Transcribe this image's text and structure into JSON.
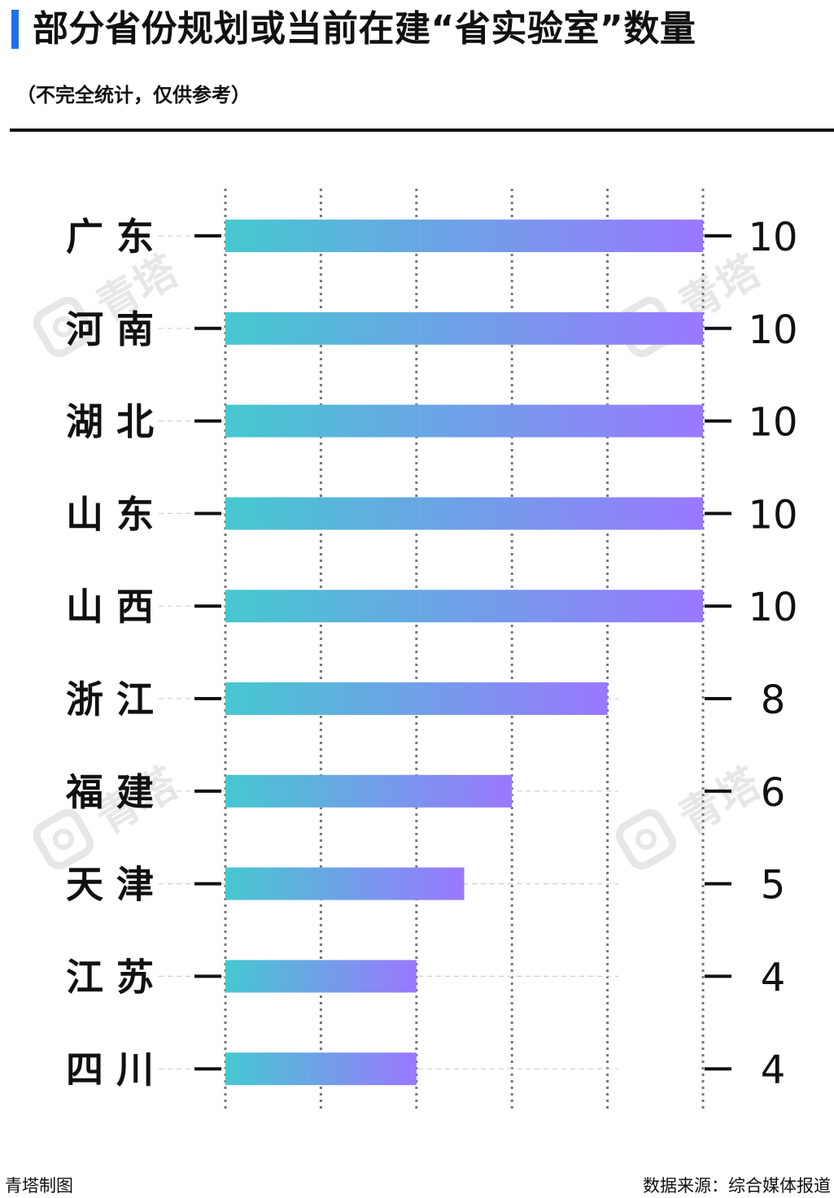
{
  "header": {
    "title": "部分省份规划或当前在建“省实验室”数量",
    "subtitle": "（不完全统计，仅供参考）",
    "accent_color": "#1f6feb"
  },
  "watermark": {
    "text": "青塔",
    "icon": "qingta-logo-icon"
  },
  "footer": {
    "credit": "青塔制图",
    "source": "数据来源：综合媒体报道"
  },
  "chart_data": {
    "type": "bar",
    "orientation": "horizontal",
    "categories": [
      "广 东",
      "河 南",
      "湖 北",
      "山 东",
      "山 西",
      "浙 江",
      "福 建",
      "天 津",
      "江 苏",
      "四 川"
    ],
    "values": [
      10,
      10,
      10,
      10,
      10,
      8,
      6,
      5,
      4,
      4
    ],
    "xlim": [
      0,
      10
    ],
    "grid": true,
    "gradient": [
      "#45c8d0",
      "#9a78ff"
    ],
    "show_value_labels": true
  }
}
